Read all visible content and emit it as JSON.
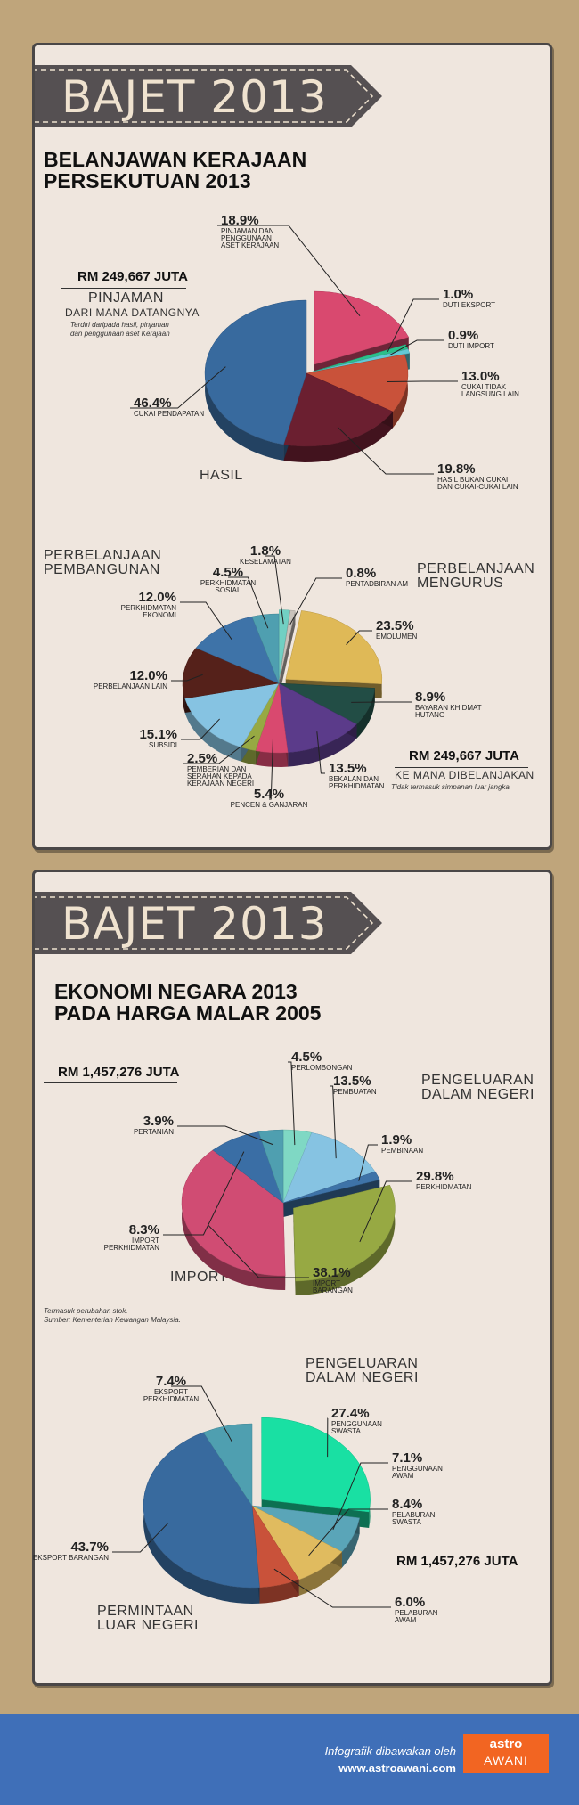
{
  "card1": {
    "ribbon_title": "BAJET 2013",
    "heading_line1": "BELANJAWAN KERAJAAN",
    "heading_line2": "PERSEKUTUAN 2013",
    "income_total": "RM 249,667 JUTA",
    "income_label": "PINJAMAN",
    "income_sub": "DARI MANA DATANGNYA",
    "income_note1": "Terdiri daripada hasil, pinjaman",
    "income_note2": "dan penggunaan aset Kerajaan",
    "hasil_label": "HASIL",
    "dev_label1": "PERBELANJAAN",
    "dev_label2": "PEMBANGUNAN",
    "opex_label1": "PERBELANJAAN",
    "opex_label2": "MENGURUS",
    "spend_total": "RM 249,667 JUTA",
    "spend_sub": "KE MANA DIBELANJAKAN",
    "spend_note": "Tidak termasuk simpanan luar jangka"
  },
  "card2": {
    "ribbon_title": "BAJET 2013",
    "heading_line1": "EKONOMI NEGARA 2013",
    "heading_line2": "PADA HARGA MALAR 2005",
    "supply_total": "RM 1,457,276 JUTA",
    "supply_label1": "PENGELUARAN",
    "supply_label2": "DALAM NEGERI",
    "import_label": "IMPORT",
    "note1": "Termasuk perubahan stok.",
    "note2": "Sumber: Kementerian Kewangan Malaysia.",
    "demand_label1": "PENGELUARAN",
    "demand_label2": "DALAM NEGERI",
    "demand_total": "RM 1,457,276 JUTA",
    "ext_label1": "PERMINTAAN",
    "ext_label2": "LUAR NEGERI"
  },
  "footer": {
    "credit": "Infografik dibawakan oleh",
    "url": "www.astroawani.com",
    "logo_top": "astro",
    "logo_bottom": "AWANI"
  },
  "chart_data": [
    {
      "type": "pie",
      "title": "BELANJAWAN KERAJAAN PERSEKUTUAN 2013 — DARI MANA DATANGNYA",
      "unit": "%",
      "slices": [
        {
          "label": "PINJAMAN DAN PENGGUNAAN ASET KERAJAAN",
          "value": 18.9,
          "pct": "18.9%",
          "color": "#d9496f",
          "desc": [
            "PINJAMAN DAN",
            "PENGGUNAAN",
            "ASET KERAJAAN"
          ]
        },
        {
          "label": "DUTI EKSPORT",
          "value": 1.0,
          "pct": "1.0%",
          "color": "#2bbf8a",
          "desc": [
            "DUTI EKSPORT"
          ]
        },
        {
          "label": "DUTI IMPORT",
          "value": 0.9,
          "pct": "0.9%",
          "color": "#62c9d6",
          "desc": [
            "DUTI IMPORT"
          ]
        },
        {
          "label": "CUKAI TIDAK LANGSUNG LAIN",
          "value": 13.0,
          "pct": "13.0%",
          "color": "#c9523a",
          "desc": [
            "CUKAI TIDAK",
            "LANGSUNG LAIN"
          ]
        },
        {
          "label": "HASIL BUKAN CUKAI DAN CUKAI-CUKAI LAIN",
          "value": 19.8,
          "pct": "19.8%",
          "color": "#6b1f30",
          "desc": [
            "HASIL BUKAN CUKAI",
            "DAN CUKAI-CUKAI LAIN"
          ]
        },
        {
          "label": "CUKAI PENDAPATAN",
          "value": 46.4,
          "pct": "46.4%",
          "color": "#386a9e",
          "desc": [
            "CUKAI PENDAPATAN"
          ]
        }
      ]
    },
    {
      "type": "pie",
      "title": "KE MANA DIBELANJAKAN",
      "unit": "%",
      "slices": [
        {
          "label": "KESELAMATAN",
          "value": 1.8,
          "pct": "1.8%",
          "color": "#71d0c3",
          "desc": [
            "KESELAMATAN"
          ]
        },
        {
          "label": "PENTADBIRAN AM",
          "value": 0.8,
          "pct": "0.8%",
          "color": "#c9c2bb",
          "desc": [
            "PENTADBIRAN AM"
          ]
        },
        {
          "label": "EMOLUMEN",
          "value": 23.5,
          "pct": "23.5%",
          "color": "#dfb957",
          "desc": [
            "EMOLUMEN"
          ]
        },
        {
          "label": "BAYARAN KHIDMAT HUTANG",
          "value": 8.9,
          "pct": "8.9%",
          "color": "#224d45",
          "desc": [
            "BAYARAN KHIDMAT",
            "HUTANG"
          ]
        },
        {
          "label": "BEKALAN DAN PERKHIDMATAN",
          "value": 13.5,
          "pct": "13.5%",
          "color": "#5b3b8a",
          "desc": [
            "BEKALAN DAN",
            "PERKHIDMATAN"
          ]
        },
        {
          "label": "PENCEN & GANJARAN",
          "value": 5.4,
          "pct": "5.4%",
          "color": "#d9496f",
          "desc": [
            "PENCEN & GANJARAN"
          ]
        },
        {
          "label": "PEMBERIAN DAN SERAHAN KEPADA KERAJAAN NEGERI",
          "value": 2.5,
          "pct": "2.5%",
          "color": "#97a943",
          "desc": [
            "PEMBERIAN DAN",
            "SERAHAN KEPADA",
            "KERAJAAN NEGERI"
          ]
        },
        {
          "label": "SUBSIDI",
          "value": 15.1,
          "pct": "15.1%",
          "color": "#86c3e2",
          "desc": [
            "SUBSIDI"
          ]
        },
        {
          "label": "PERBELANJAAN LAIN",
          "value": 12.0,
          "pct": "12.0%",
          "color": "#55211a",
          "desc": [
            "PERBELANJAAN LAIN"
          ]
        },
        {
          "label": "PERKHIDMATAN EKONOMI",
          "value": 12.0,
          "pct": "12.0%",
          "color": "#3e73a8",
          "desc": [
            "PERKHIDMATAN",
            "EKONOMI"
          ]
        },
        {
          "label": "PERKHIDMATAN SOSIAL",
          "value": 4.5,
          "pct": "4.5%",
          "color": "#4f9fb0",
          "desc": [
            "PERKHIDMATAN",
            "SOSIAL"
          ]
        }
      ]
    },
    {
      "type": "pie",
      "title": "EKONOMI NEGARA 2013 PADA HARGA MALAR 2005 — PENAWARAN",
      "unit": "%",
      "slices": [
        {
          "label": "PERLOMBONGAN",
          "value": 4.5,
          "pct": "4.5%",
          "color": "#7fd8c4",
          "desc": [
            "PERLOMBONGAN"
          ]
        },
        {
          "label": "PEMBUATAN",
          "value": 13.5,
          "pct": "13.5%",
          "color": "#86c3e2",
          "desc": [
            "PEMBUATAN"
          ]
        },
        {
          "label": "PEMBINAAN",
          "value": 1.9,
          "pct": "1.9%",
          "color": "#3e73a8",
          "desc": [
            "PEMBINAAN"
          ]
        },
        {
          "label": "PERKHIDMATAN",
          "value": 29.8,
          "pct": "29.8%",
          "color": "#97a943",
          "desc": [
            "PERKHIDMATAN"
          ]
        },
        {
          "label": "IMPORT BARANGAN",
          "value": 38.1,
          "pct": "38.1%",
          "color": "#d04c73",
          "desc": [
            "IMPORT",
            "BARANGAN"
          ]
        },
        {
          "label": "IMPORT PERKHIDMATAN",
          "value": 8.3,
          "pct": "8.3%",
          "color": "#3a6ea5",
          "desc": [
            "IMPORT",
            "PERKHIDMATAN"
          ]
        },
        {
          "label": "PERTANIAN",
          "value": 3.9,
          "pct": "3.9%",
          "color": "#4f9fb0",
          "desc": [
            "PERTANIAN"
          ]
        }
      ]
    },
    {
      "type": "pie",
      "title": "PERMINTAAN",
      "unit": "%",
      "slices": [
        {
          "label": "PENGGUNAAN SWASTA",
          "value": 27.4,
          "pct": "27.4%",
          "color": "#19e0a3",
          "desc": [
            "PENGGUNAAN",
            "SWASTA"
          ]
        },
        {
          "label": "PENGGUNAAN AWAM",
          "value": 7.1,
          "pct": "7.1%",
          "color": "#5aa5b8",
          "desc": [
            "PENGGUNAAN",
            "AWAM"
          ]
        },
        {
          "label": "PELABURAN SWASTA",
          "value": 8.4,
          "pct": "8.4%",
          "color": "#e0bb5f",
          "desc": [
            "PELABURAN",
            "SWASTA"
          ]
        },
        {
          "label": "PELABURAN AWAM",
          "value": 6.0,
          "pct": "6.0%",
          "color": "#c9523a",
          "desc": [
            "PELABURAN",
            "AWAM"
          ]
        },
        {
          "label": "EKSPORT BARANGAN",
          "value": 43.7,
          "pct": "43.7%",
          "color": "#386a9e",
          "desc": [
            "EKSPORT BARANGAN"
          ]
        },
        {
          "label": "EKSPORT PERKHIDMATAN",
          "value": 7.4,
          "pct": "7.4%",
          "color": "#4f9fb0",
          "desc": [
            "EKSPORT",
            "PERKHIDMATAN"
          ]
        }
      ]
    }
  ]
}
